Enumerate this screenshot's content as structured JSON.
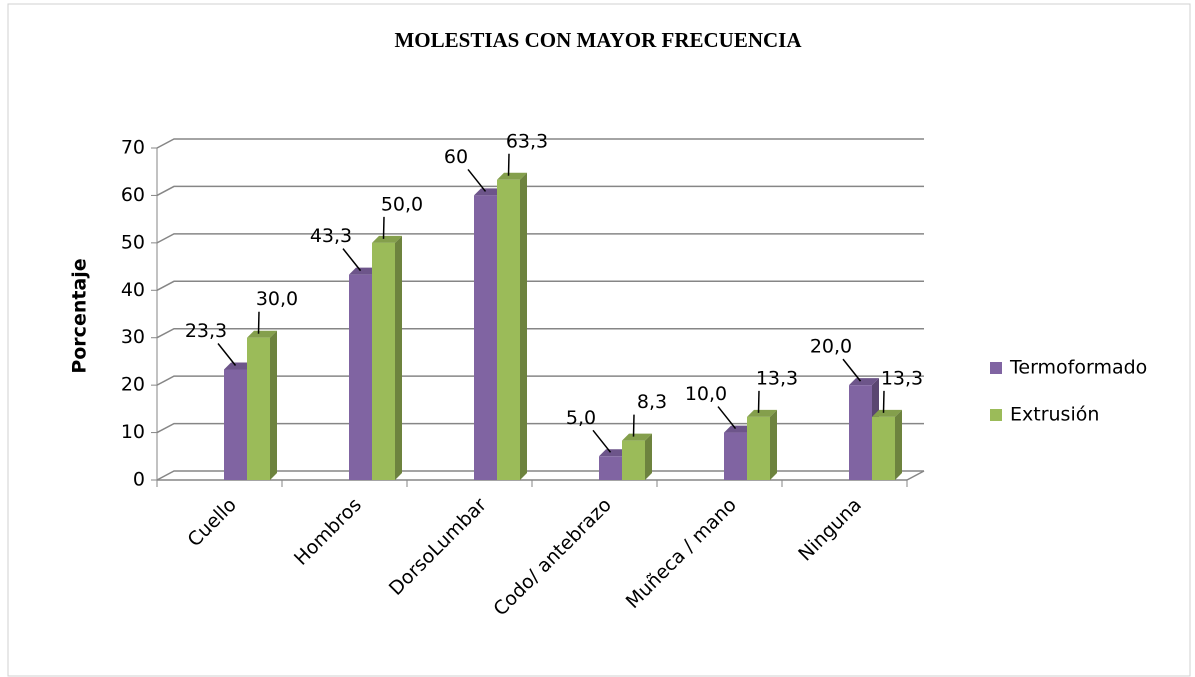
{
  "chart_data": {
    "type": "bar3d",
    "title": "MOLESTIAS CON MAYOR FRECUENCIA",
    "y_label": "Porcentaje",
    "categories": [
      "Cuello",
      "Hombros",
      "DorsoLumbar",
      "Codo/ antebrazo",
      "Muñeca / mano",
      "Ninguna"
    ],
    "series": [
      {
        "name": "Termoformado",
        "color": "#8064a2",
        "values": [
          23.3,
          43.3,
          60,
          5.0,
          10.0,
          20.0
        ],
        "value_labels": [
          "23,3",
          "43,3",
          "60",
          "5,0",
          "10,0",
          "20,0"
        ]
      },
      {
        "name": "Extrusión",
        "color": "#9bbb59",
        "values": [
          30.0,
          50.0,
          63.3,
          8.3,
          13.3,
          13.3
        ],
        "value_labels": [
          "30,0",
          "50,0",
          "63,3",
          "8,3",
          "13,3",
          "13,3"
        ]
      }
    ],
    "ylim": [
      0,
      70
    ],
    "yticks": [
      0,
      10,
      20,
      30,
      40,
      50,
      60,
      70
    ],
    "grid": true,
    "legend": "right"
  }
}
